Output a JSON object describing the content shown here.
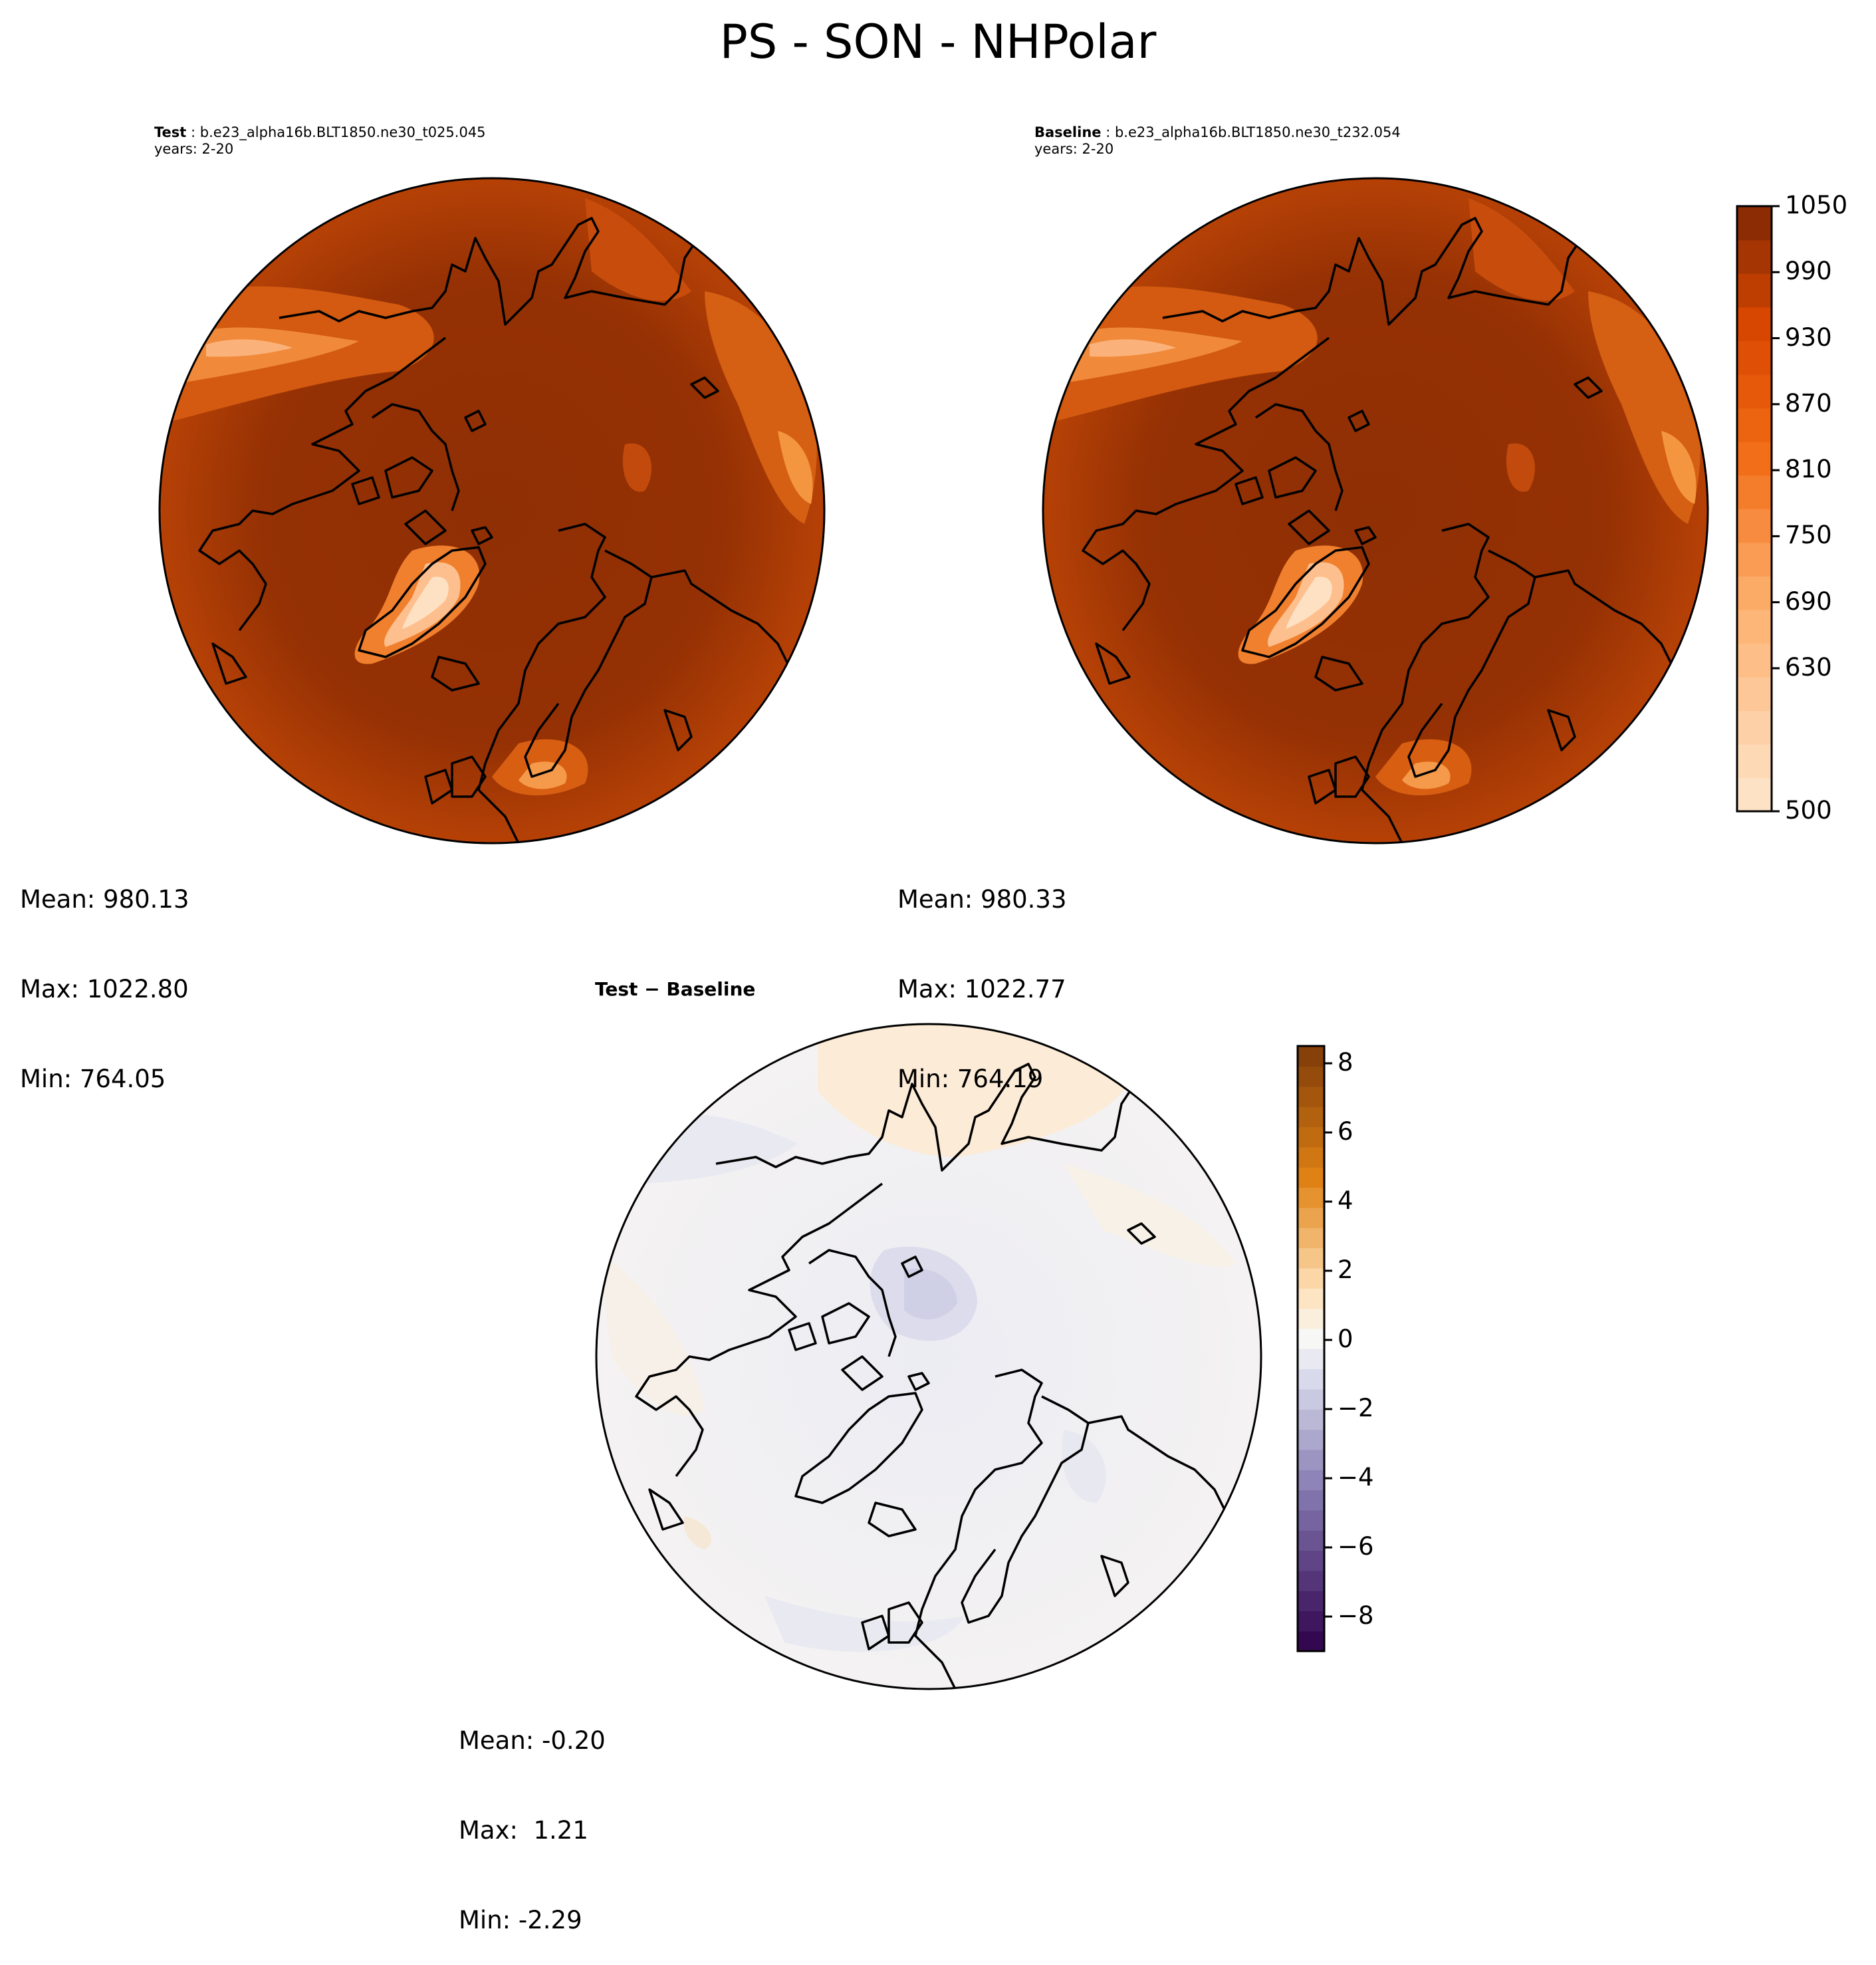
{
  "figure": {
    "title": "PS - SON - NHPolar"
  },
  "panels": [
    {
      "id": "test",
      "label": "Test",
      "case": "b.e23_alpha16b.BLT1850.ne30_t025.045",
      "years": "years: 2-20",
      "stats": {
        "mean": "Mean: 980.13",
        "max": "Max: 1022.80",
        "min": "Min: 764.05"
      }
    },
    {
      "id": "baseline",
      "label": "Baseline",
      "case": "b.e23_alpha16b.BLT1850.ne30_t232.054",
      "years": "years: 2-20",
      "stats": {
        "mean": "Mean: 980.33",
        "max": "Max: 1022.77",
        "min": "Min: 764.19"
      }
    },
    {
      "id": "diff",
      "label": "Test − Baseline",
      "stats": {
        "mean": "Mean: -0.20",
        "max": "Max:  1.21",
        "min": "Min: -2.29"
      }
    }
  ],
  "chart_data": [
    {
      "type": "heatmap",
      "projection": "north-polar-stereographic",
      "panel": "test",
      "colormap": "Oranges",
      "levels": [
        500,
        1050
      ],
      "summary": {
        "mean": 980.13,
        "max": 1022.8,
        "min": 764.05
      }
    },
    {
      "type": "heatmap",
      "projection": "north-polar-stereographic",
      "panel": "baseline",
      "colormap": "Oranges",
      "levels": [
        500,
        1050
      ],
      "summary": {
        "mean": 980.33,
        "max": 1022.77,
        "min": 764.19
      }
    },
    {
      "type": "heatmap",
      "projection": "north-polar-stereographic",
      "panel": "diff",
      "colormap": "PuOr_r",
      "levels": [
        -9,
        8.5
      ],
      "summary": {
        "mean": -0.2,
        "max": 1.21,
        "min": -2.29
      }
    }
  ],
  "colorbars": {
    "main": {
      "range": [
        500,
        1050
      ],
      "ticks": [
        "1050",
        "990",
        "930",
        "870",
        "810",
        "750",
        "690",
        "630",
        "500"
      ],
      "tick_values": [
        1050,
        990,
        930,
        870,
        810,
        750,
        690,
        630,
        500
      ]
    },
    "diff": {
      "range": [
        -9,
        8.5
      ],
      "ticks": [
        "8",
        "6",
        "4",
        "2",
        "0",
        "−2",
        "−4",
        "−6",
        "−8"
      ],
      "tick_values": [
        8,
        6,
        4,
        2,
        0,
        -2,
        -4,
        -6,
        -8
      ]
    }
  },
  "colors": {
    "land_outline": "#000000",
    "orange_dark": "#8f2f04",
    "orange_light": "#fee6ce",
    "diff_neutral": "#f3f3f5",
    "diff_purple": "#2d0a4b",
    "diff_brown": "#7f3b08"
  }
}
